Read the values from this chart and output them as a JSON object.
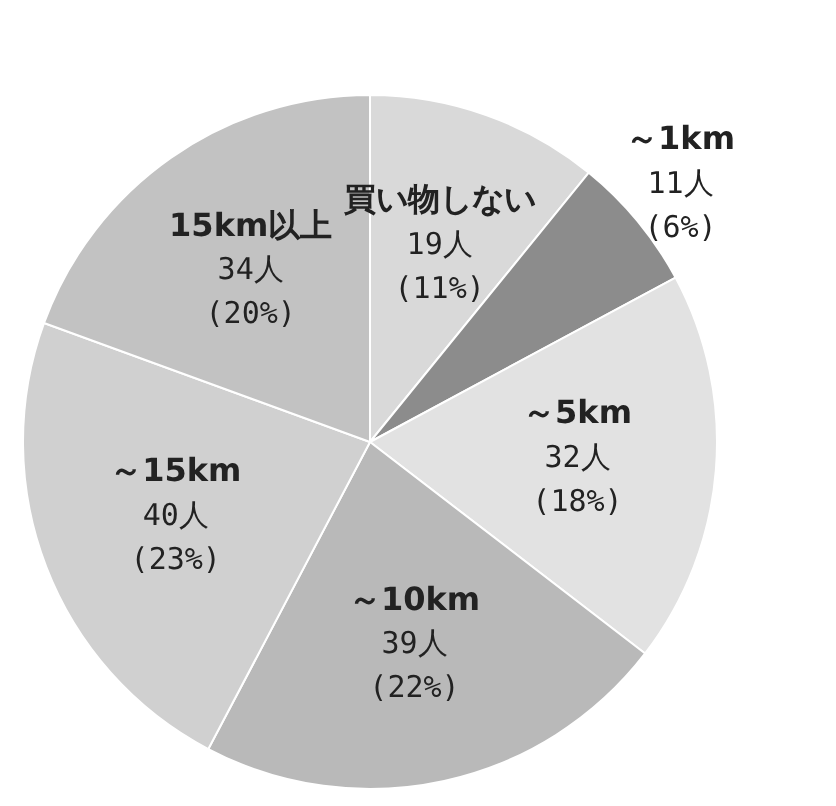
{
  "chart_data": {
    "type": "pie",
    "categories": [
      "買い物しない",
      "～1km",
      "～5km",
      "～10km",
      "～15km",
      "15km以上"
    ],
    "values": [
      19,
      11,
      32,
      39,
      40,
      34
    ],
    "value_labels": [
      "19人 (11%)",
      "11人 (6%)",
      "32人 (18%)",
      "39人 (22%)",
      "40人 (23%)",
      "34人 (20%)"
    ],
    "colors": [
      "#d9d9d9",
      "#8c8c8c",
      "#e2e2e2",
      "#b9b9b9",
      "#d0d0d0",
      "#c2c2c2"
    ]
  }
}
